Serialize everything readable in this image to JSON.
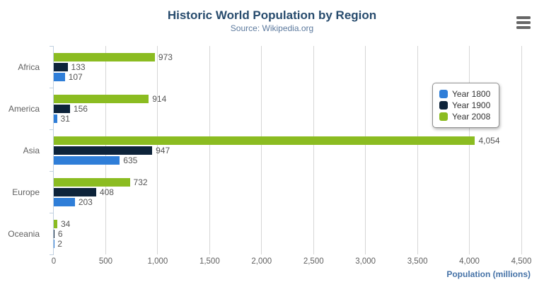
{
  "chart_data": {
    "type": "bar",
    "orientation": "horizontal",
    "title": "Historic World Population by Region",
    "subtitle": "Source: Wikipedia.org",
    "categories": [
      "Africa",
      "America",
      "Asia",
      "Europe",
      "Oceania"
    ],
    "series": [
      {
        "name": "Year 1800",
        "color": "#2f7ed8",
        "values": [
          107,
          31,
          635,
          203,
          2
        ]
      },
      {
        "name": "Year 1900",
        "color": "#0d233a",
        "values": [
          133,
          156,
          947,
          408,
          6
        ]
      },
      {
        "name": "Year 2008",
        "color": "#8bbc21",
        "values": [
          973,
          914,
          4054,
          732,
          34
        ]
      }
    ],
    "bar_order_top_to_bottom": [
      "Year 2008",
      "Year 1900",
      "Year 1800"
    ],
    "xlabel": "Population (millions)",
    "ylabel": "",
    "xlim": [
      0,
      4500
    ],
    "x_ticks": [
      0,
      500,
      1000,
      1500,
      2000,
      2500,
      3000,
      3500,
      4000,
      4500
    ],
    "grid": true,
    "data_labels": true,
    "legend_position": "right",
    "style": {
      "title_color": "#274b6d",
      "subtitle_color": "#5d7a9e",
      "axis_title_color": "#4572A7",
      "tick_label_color": "#606060",
      "data_label_color": "#555555",
      "grid_line_color": "#d6d6d6",
      "axis_line_color": "#c0d0e0",
      "legend_border_color": "#909090",
      "menu_icon_color": "#666666"
    }
  },
  "menu": {
    "tooltip": "Chart context menu"
  }
}
